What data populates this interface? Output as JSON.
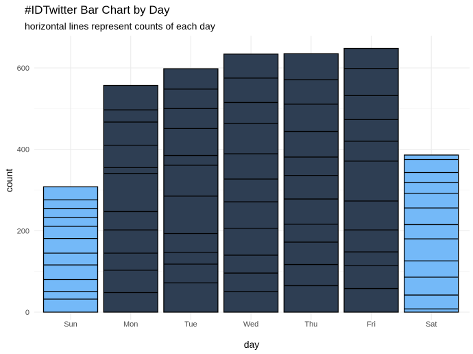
{
  "chart_data": {
    "type": "bar",
    "title": "#IDTwitter Bar Chart by Day",
    "subtitle": "horizontal lines represent counts of each day",
    "xlabel": "day",
    "ylabel": "count",
    "ylim": [
      0,
      680
    ],
    "yticks": [
      0,
      200,
      400,
      600
    ],
    "categories": [
      "Sun",
      "Mon",
      "Tue",
      "Wed",
      "Thu",
      "Fri",
      "Sat"
    ],
    "values": [
      308,
      557,
      598,
      634,
      635,
      648,
      386
    ],
    "weekend_color": "#74b9f8",
    "weekday_color": "#2e3e53",
    "grid": true,
    "segments": [
      [
        0,
        32,
        51,
        80,
        116,
        145,
        181,
        211,
        232,
        255,
        276,
        308
      ],
      [
        0,
        48,
        103,
        145,
        202,
        247,
        341,
        355,
        410,
        467,
        497,
        557
      ],
      [
        0,
        72,
        118,
        147,
        193,
        285,
        361,
        385,
        451,
        500,
        548,
        598
      ],
      [
        0,
        51,
        96,
        140,
        206,
        271,
        327,
        389,
        464,
        515,
        575,
        634
      ],
      [
        0,
        65,
        117,
        172,
        216,
        278,
        336,
        381,
        444,
        511,
        571,
        635
      ],
      [
        0,
        58,
        114,
        148,
        202,
        273,
        371,
        420,
        473,
        532,
        599,
        648
      ],
      [
        0,
        8,
        42,
        86,
        126,
        180,
        215,
        256,
        292,
        318,
        343,
        375,
        386
      ]
    ]
  }
}
